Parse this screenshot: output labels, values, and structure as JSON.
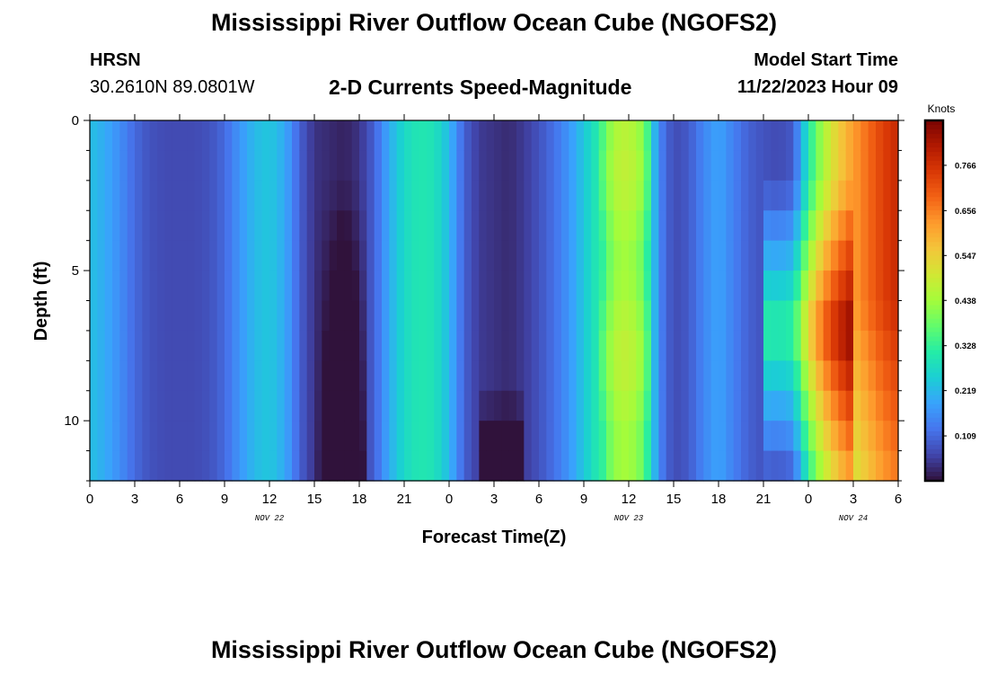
{
  "page": {
    "title": "Mississippi River Outflow Ocean Cube (NGOFS2)",
    "station": "HRSN",
    "coordinates": "30.2610N  89.0801W",
    "subtitle": "2-D Currents Speed-Magnitude",
    "model_start_label": "Model Start Time",
    "model_start_value": "11/22/2023 Hour 09",
    "footer_title": "Mississippi River Outflow Ocean Cube (NGOFS2)"
  },
  "colors": {
    "colormap": [
      "#30123b",
      "#4145ab",
      "#4675ed",
      "#39a2fc",
      "#1bcfd4",
      "#24eca6",
      "#61fc6c",
      "#a4fc3b",
      "#d1e834",
      "#f3c63a",
      "#fe9b2d",
      "#f36315",
      "#d93806",
      "#b11901",
      "#7a0402"
    ]
  },
  "chart_data": {
    "type": "heatmap",
    "title": "2-D Currents Speed-Magnitude",
    "xlabel": "Forecast Time(Z)",
    "ylabel": "Depth (ft)",
    "x_tick_labels": [
      "0",
      "3",
      "6",
      "9",
      "12",
      "15",
      "18",
      "21",
      "0",
      "3",
      "6",
      "9",
      "12",
      "15",
      "18",
      "21",
      "0",
      "3",
      "6"
    ],
    "x_hours": [
      0,
      54
    ],
    "y_tick_labels": [
      "0",
      "5",
      "10"
    ],
    "y_ticks": [
      0,
      5,
      10
    ],
    "ylim": [
      0,
      12
    ],
    "date_labels": [
      {
        "text": "NOV 22",
        "hour": 12
      },
      {
        "text": "NOV 23",
        "hour": 36
      },
      {
        "text": "NOV 24",
        "hour": 51
      }
    ],
    "colorbar": {
      "label": "Knots",
      "range": [
        0,
        0.875
      ],
      "tick_labels": [
        "0.766",
        "0.656",
        "0.547",
        "0.438",
        "0.328",
        "0.219",
        "0.109"
      ],
      "tick_values": [
        0.766,
        0.656,
        0.547,
        0.438,
        0.328,
        0.219,
        0.109
      ]
    },
    "time_profile_surface": [
      {
        "h": 0,
        "v": 0.23
      },
      {
        "h": 1,
        "v": 0.2
      },
      {
        "h": 2,
        "v": 0.16
      },
      {
        "h": 3,
        "v": 0.11
      },
      {
        "h": 4,
        "v": 0.08
      },
      {
        "h": 5,
        "v": 0.07
      },
      {
        "h": 6,
        "v": 0.07
      },
      {
        "h": 7,
        "v": 0.07
      },
      {
        "h": 8,
        "v": 0.08
      },
      {
        "h": 9,
        "v": 0.11
      },
      {
        "h": 10,
        "v": 0.17
      },
      {
        "h": 11,
        "v": 0.22
      },
      {
        "h": 12,
        "v": 0.24
      },
      {
        "h": 13,
        "v": 0.2
      },
      {
        "h": 14,
        "v": 0.1
      },
      {
        "h": 15,
        "v": 0.04
      },
      {
        "h": 16,
        "v": 0.03
      },
      {
        "h": 17,
        "v": 0.02
      },
      {
        "h": 18,
        "v": 0.04
      },
      {
        "h": 19,
        "v": 0.1
      },
      {
        "h": 20,
        "v": 0.2
      },
      {
        "h": 21,
        "v": 0.27
      },
      {
        "h": 22,
        "v": 0.3
      },
      {
        "h": 23,
        "v": 0.29
      },
      {
        "h": 24,
        "v": 0.22
      },
      {
        "h": 25,
        "v": 0.1
      },
      {
        "h": 26,
        "v": 0.05
      },
      {
        "h": 27,
        "v": 0.04
      },
      {
        "h": 28,
        "v": 0.03
      },
      {
        "h": 29,
        "v": 0.05
      },
      {
        "h": 30,
        "v": 0.08
      },
      {
        "h": 31,
        "v": 0.12
      },
      {
        "h": 32,
        "v": 0.17
      },
      {
        "h": 33,
        "v": 0.24
      },
      {
        "h": 34,
        "v": 0.31
      },
      {
        "h": 35,
        "v": 0.44
      },
      {
        "h": 36,
        "v": 0.46
      },
      {
        "h": 37,
        "v": 0.4
      },
      {
        "h": 38,
        "v": 0.15
      },
      {
        "h": 39,
        "v": 0.07
      },
      {
        "h": 40,
        "v": 0.09
      },
      {
        "h": 41,
        "v": 0.15
      },
      {
        "h": 42,
        "v": 0.19
      },
      {
        "h": 43,
        "v": 0.14
      },
      {
        "h": 44,
        "v": 0.1
      },
      {
        "h": 45,
        "v": 0.08
      },
      {
        "h": 46,
        "v": 0.07
      },
      {
        "h": 47,
        "v": 0.09
      },
      {
        "h": 48,
        "v": 0.3
      },
      {
        "h": 49,
        "v": 0.45
      },
      {
        "h": 50,
        "v": 0.55
      },
      {
        "h": 51,
        "v": 0.62
      },
      {
        "h": 52,
        "v": 0.68
      },
      {
        "h": 53,
        "v": 0.74
      },
      {
        "h": 54,
        "v": 0.78
      }
    ]
  }
}
